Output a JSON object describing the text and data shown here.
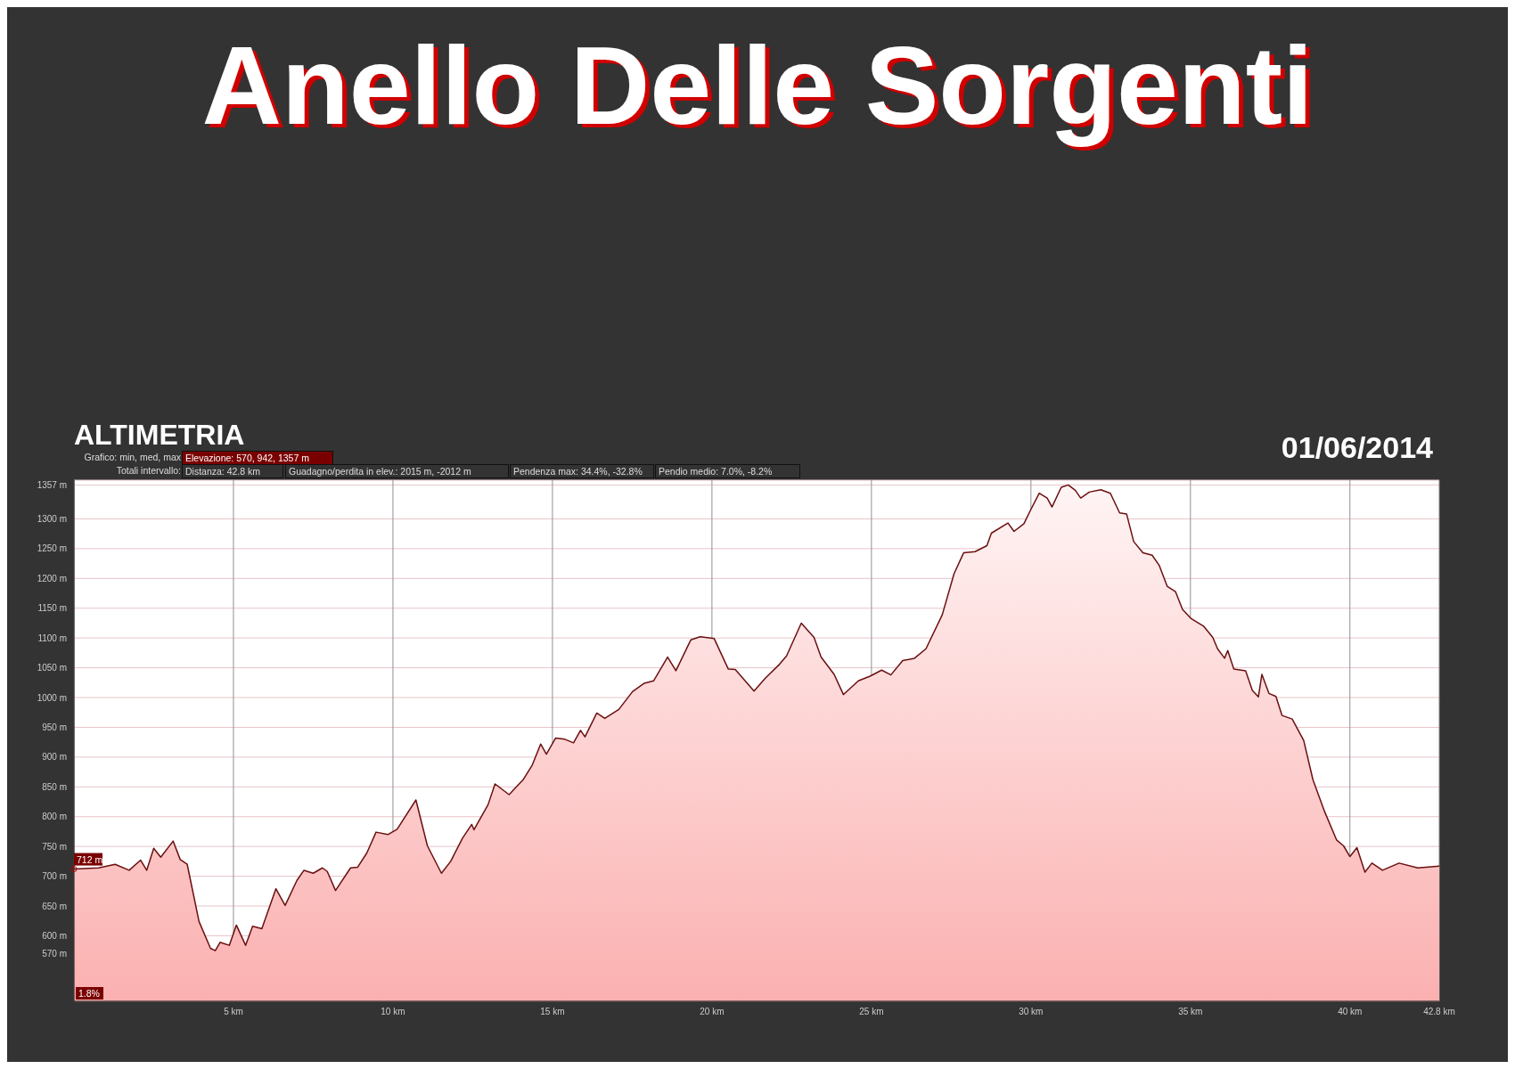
{
  "chart_data": {
    "type": "area",
    "title": "Anello Delle Sorgenti",
    "subtitle": "ALTIMETRIA",
    "annotations": [
      "01/06/2014",
      "Grafico: min, med, max",
      "Elevazione: 570, 942, 1357 m",
      "Totali intervallo:",
      "Distanza: 42.8 km",
      "Guadagno/perdita in elev.: 2015 m, -2012 m",
      "Pendenza max: 34.4%, -32.8%",
      "Pendio medio: 7.0%, -8.2%",
      "1.8%",
      {
        "text": "712 m",
        "x": 0,
        "y": 712
      }
    ],
    "x": [
      0,
      0.77,
      1.29,
      1.73,
      2.09,
      2.28,
      2.5,
      2.72,
      3.11,
      3.33,
      3.55,
      3.92,
      4.28,
      4.43,
      4.58,
      4.87,
      5.09,
      5.38,
      5.6,
      5.89,
      6.33,
      6.62,
      6.99,
      7.21,
      7.5,
      7.79,
      7.94,
      8.2,
      8.67,
      8.89,
      9.18,
      9.47,
      9.84,
      10.13,
      10.72,
      11.08,
      11.52,
      11.81,
      12.18,
      12.47,
      12.54,
      12.98,
      13.2,
      13.64,
      14.08,
      14.37,
      14.63,
      14.81,
      15.1,
      15.39,
      15.66,
      15.88,
      16.02,
      16.39,
      16.64,
      17.08,
      17.51,
      17.88,
      18.17,
      18.61,
      18.87,
      19.34,
      19.63,
      20.07,
      20.51,
      20.73,
      21.32,
      21.68,
      22.12,
      22.34,
      22.8,
      23.2,
      23.42,
      23.83,
      24.12,
      24.59,
      24.96,
      25.32,
      25.61,
      25.98,
      26.35,
      26.71,
      27.22,
      27.59,
      27.89,
      28.25,
      28.62,
      28.76,
      29.28,
      29.47,
      29.78,
      30.0,
      30.26,
      30.51,
      30.66,
      30.95,
      31.17,
      31.39,
      31.56,
      31.83,
      32.19,
      32.49,
      32.78,
      33.0,
      33.22,
      33.51,
      33.8,
      34.02,
      34.27,
      34.53,
      34.75,
      35.01,
      35.41,
      35.7,
      35.85,
      36.07,
      36.17,
      36.36,
      36.73,
      36.94,
      37.13,
      37.24,
      37.46,
      37.68,
      37.87,
      38.19,
      38.55,
      38.84,
      39.21,
      39.58,
      39.8,
      40.0,
      40.22,
      40.47,
      40.69,
      41.02,
      41.54,
      42.13,
      42.8
    ],
    "series": [
      {
        "color": "#6b0f0f",
        "values": [
          712,
          714,
          720,
          710,
          727,
          710,
          747,
          732,
          759,
          728,
          720,
          624,
          579,
          575,
          589,
          584,
          618,
          584,
          616,
          612,
          679,
          651,
          693,
          710,
          705,
          714,
          708,
          676,
          714,
          715,
          739,
          774,
          770,
          779,
          828,
          751,
          705,
          725,
          764,
          787,
          778,
          820,
          855,
          837,
          862,
          887,
          922,
          905,
          932,
          930,
          924,
          945,
          934,
          974,
          965,
          980,
          1010,
          1024,
          1028,
          1068,
          1045,
          1097,
          1102,
          1099,
          1048,
          1047,
          1011,
          1033,
          1056,
          1070,
          1125,
          1101,
          1068,
          1039,
          1005,
          1028,
          1036,
          1046,
          1038,
          1062,
          1066,
          1082,
          1139,
          1208,
          1243,
          1245,
          1255,
          1276,
          1293,
          1279,
          1292,
          1316,
          1343,
          1335,
          1320,
          1353,
          1357,
          1348,
          1335,
          1345,
          1349,
          1343,
          1310,
          1308,
          1262,
          1243,
          1239,
          1222,
          1187,
          1178,
          1148,
          1133,
          1120,
          1101,
          1082,
          1066,
          1079,
          1048,
          1045,
          1012,
          1001,
          1039,
          1007,
          1002,
          970,
          964,
          928,
          862,
          808,
          761,
          751,
          733,
          748,
          707,
          722,
          710,
          722,
          714,
          717
        ]
      }
    ],
    "xlim": [
      0,
      42.8
    ],
    "xticks": [
      {
        "value": 5,
        "label": "5 km"
      },
      {
        "value": 10,
        "label": "10 km"
      },
      {
        "value": 15,
        "label": "15 km"
      },
      {
        "value": 20,
        "label": "20 km"
      },
      {
        "value": 25,
        "label": "25 km"
      },
      {
        "value": 30,
        "label": "30 km"
      },
      {
        "value": 35,
        "label": "35 km"
      },
      {
        "value": 40,
        "label": "40 km"
      },
      {
        "value": 42.8,
        "label": "42.8 km"
      }
    ],
    "ylim": [
      490,
      1365
    ],
    "yticks": [
      {
        "value": 570,
        "label": "570 m"
      },
      {
        "value": 600,
        "label": "600 m"
      },
      {
        "value": 650,
        "label": "650 m"
      },
      {
        "value": 700,
        "label": "700 m"
      },
      {
        "value": 750,
        "label": "750 m"
      },
      {
        "value": 800,
        "label": "800 m"
      },
      {
        "value": 850,
        "label": "850 m"
      },
      {
        "value": 900,
        "label": "900 m"
      },
      {
        "value": 950,
        "label": "950 m"
      },
      {
        "value": 1000,
        "label": "1000 m"
      },
      {
        "value": 1050,
        "label": "1050 m"
      },
      {
        "value": 1100,
        "label": "1100 m"
      },
      {
        "value": 1150,
        "label": "1150 m"
      },
      {
        "value": 1200,
        "label": "1200 m"
      },
      {
        "value": 1250,
        "label": "1250 m"
      },
      {
        "value": 1300,
        "label": "1300 m"
      },
      {
        "value": 1357,
        "label": "1357 m"
      }
    ],
    "grid": true,
    "marker": "none",
    "line_style": "solid"
  }
}
